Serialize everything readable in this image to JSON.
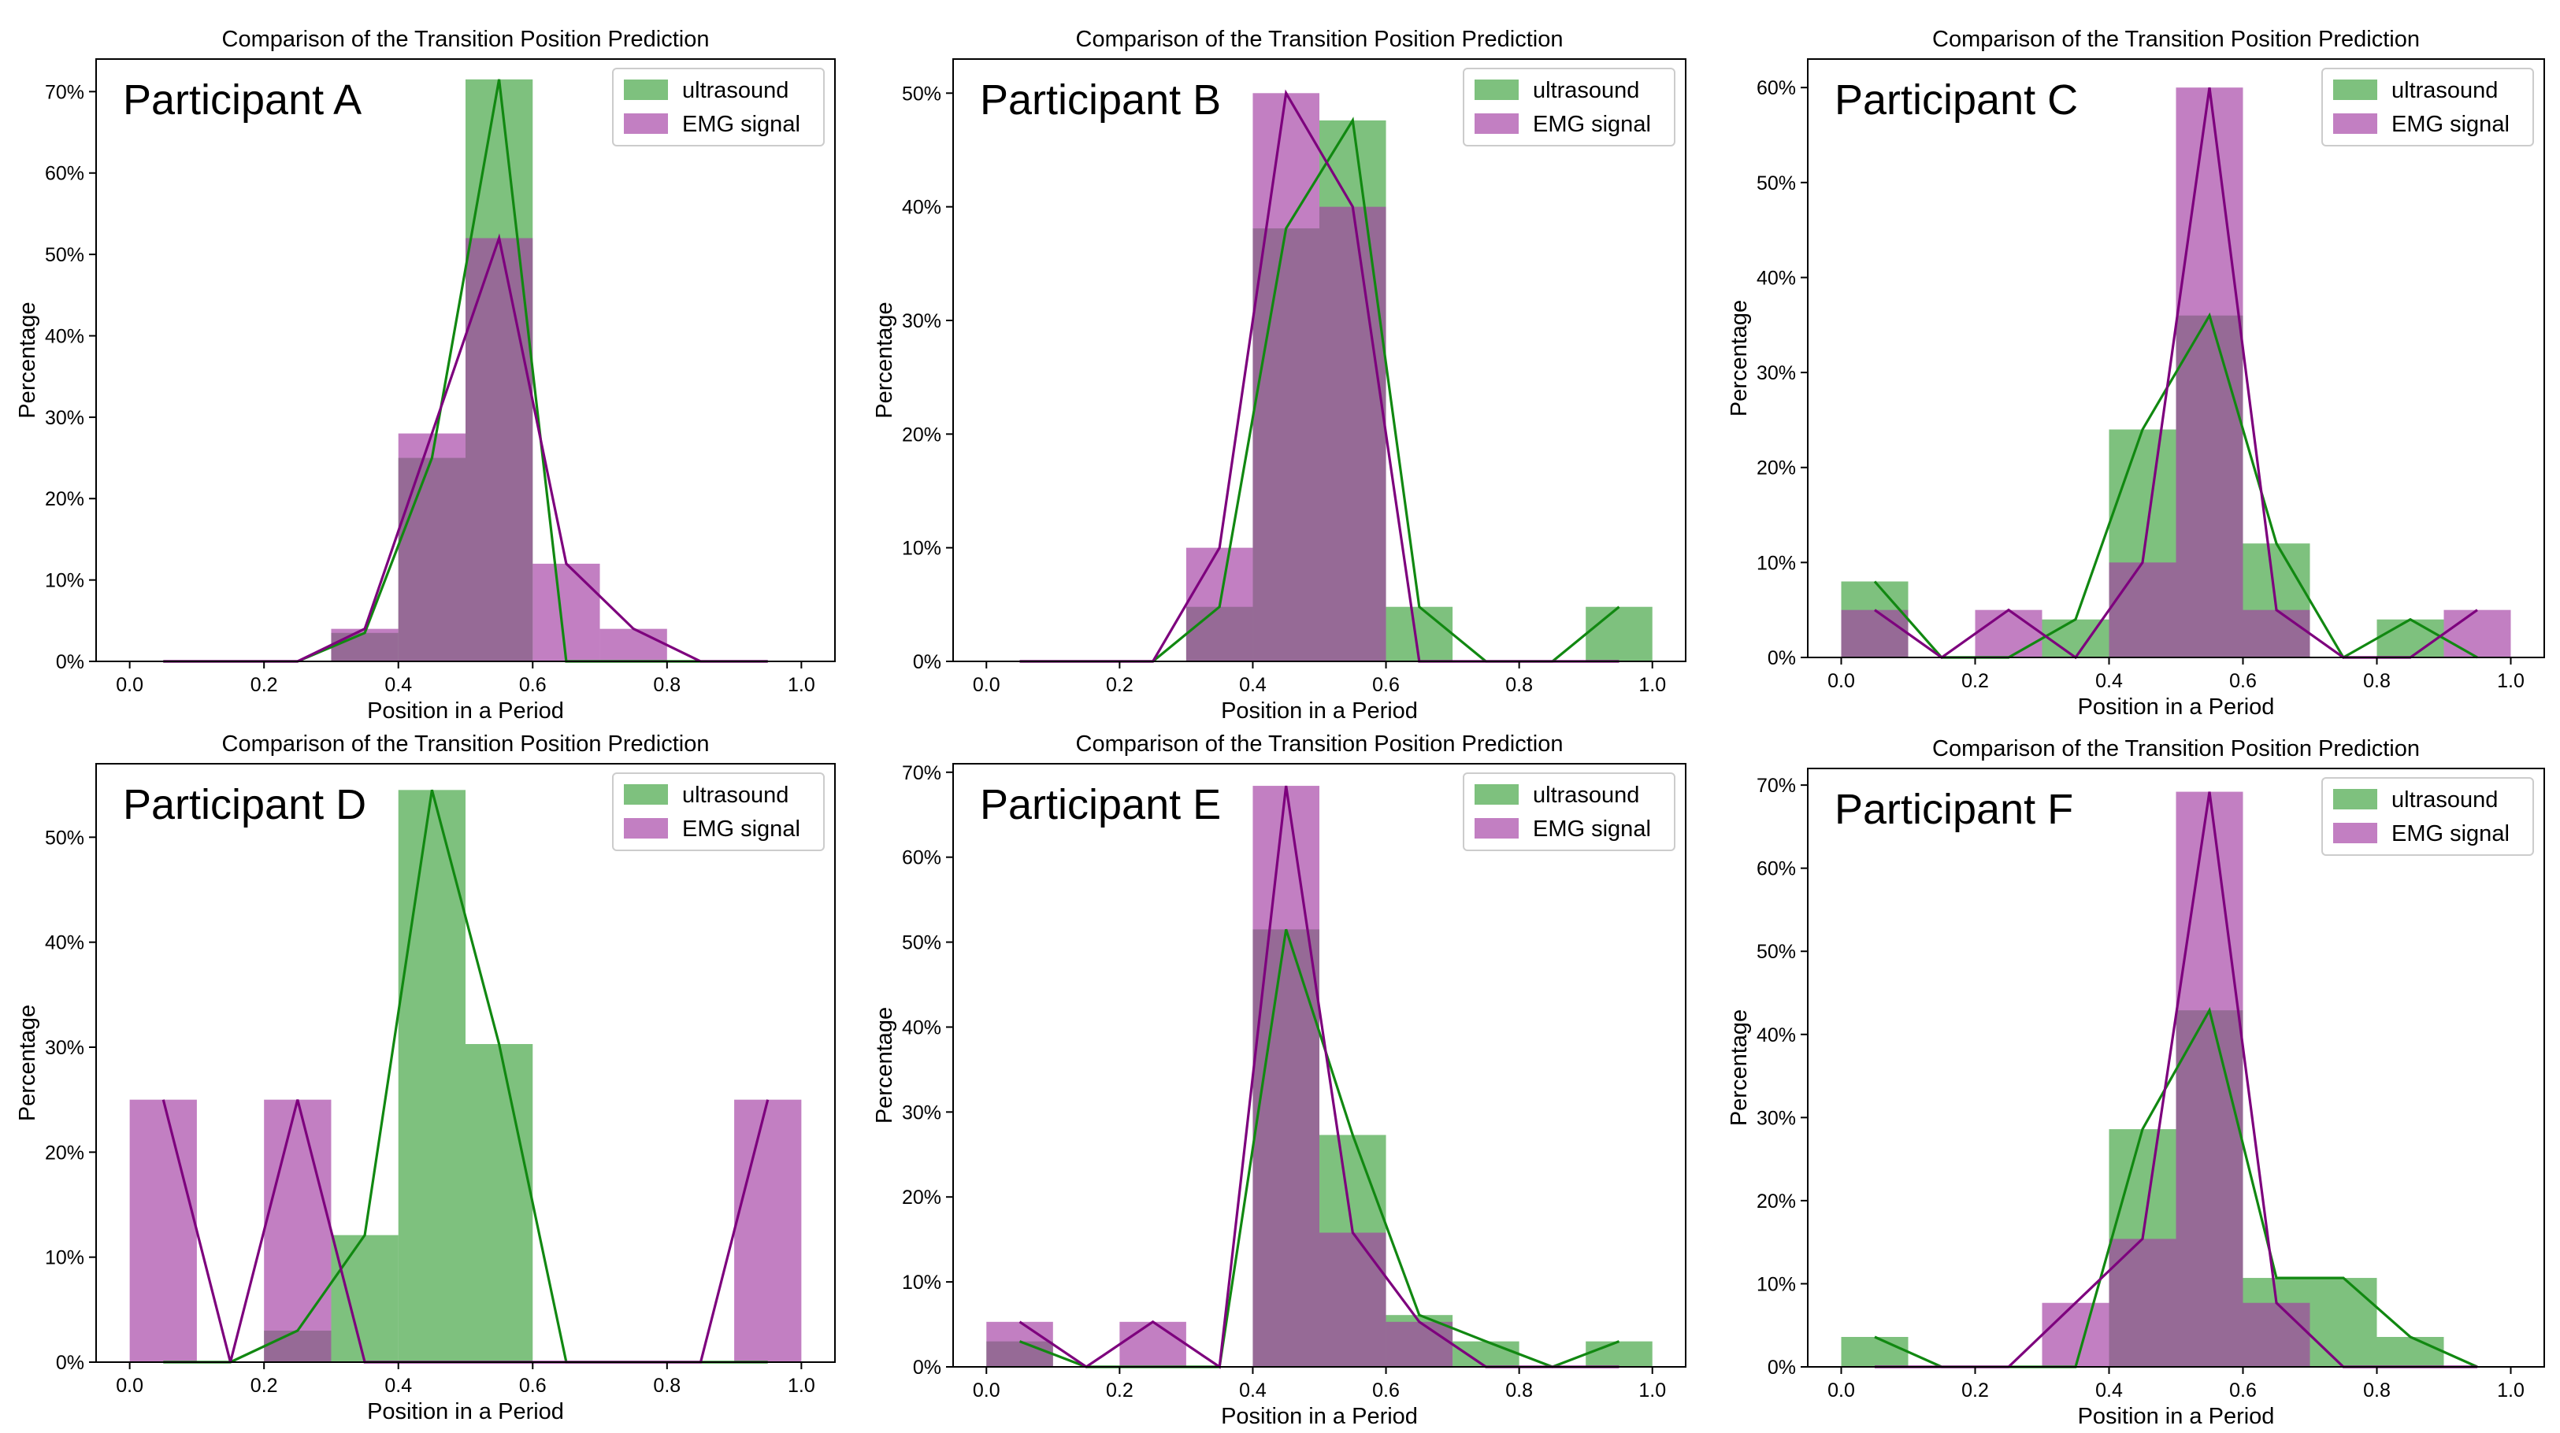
{
  "figure": {
    "style": {
      "ultrasound_color": "#2e9b2e",
      "emg_color": "#a33ca3",
      "ultrasound_line": "#118811",
      "emg_line": "#7d007d"
    }
  },
  "chart_data": [
    {
      "type": "bar",
      "panel": "Participant A",
      "title": "Comparison of the Transition Position Prediction",
      "xlabel": "Position in a Period",
      "ylabel": "Percentage",
      "xlim": [
        -0.05,
        1.05
      ],
      "ylim": [
        0,
        74
      ],
      "xticks": [
        0.0,
        0.2,
        0.4,
        0.6,
        0.8,
        1.0
      ],
      "yticks": [
        0,
        10,
        20,
        30,
        40,
        50,
        60,
        70
      ],
      "legend": "top-right",
      "bin_edges": [
        0.0,
        0.1,
        0.2,
        0.3,
        0.4,
        0.5,
        0.6,
        0.7,
        0.8,
        0.9,
        1.0
      ],
      "series": [
        {
          "name": "ultrasound",
          "values": [
            0,
            0,
            0,
            3.5,
            25,
            71.5,
            0,
            0,
            0,
            0
          ]
        },
        {
          "name": "EMG signal",
          "values": [
            0,
            0,
            0,
            4,
            28,
            52,
            12,
            4,
            0,
            0
          ]
        }
      ]
    },
    {
      "type": "bar",
      "panel": "Participant B",
      "title": "Comparison of the Transition Position Prediction",
      "xlabel": "Position in a Period",
      "ylabel": "Percentage",
      "xlim": [
        -0.05,
        1.05
      ],
      "ylim": [
        0,
        53
      ],
      "xticks": [
        0.0,
        0.2,
        0.4,
        0.6,
        0.8,
        1.0
      ],
      "yticks": [
        0,
        10,
        20,
        30,
        40,
        50
      ],
      "legend": "top-right",
      "bin_edges": [
        0.0,
        0.1,
        0.2,
        0.3,
        0.4,
        0.5,
        0.6,
        0.7,
        0.8,
        0.9,
        1.0
      ],
      "series": [
        {
          "name": "ultrasound",
          "values": [
            0,
            0,
            0,
            4.8,
            38.1,
            47.6,
            4.8,
            0,
            0,
            4.8
          ]
        },
        {
          "name": "EMG signal",
          "values": [
            0,
            0,
            0,
            10,
            50,
            40,
            0,
            0,
            0,
            0
          ]
        }
      ]
    },
    {
      "type": "bar",
      "panel": "Participant C",
      "title": "Comparison of the Transition Position Prediction",
      "xlabel": "Position in a Period",
      "ylabel": "Percentage",
      "xlim": [
        -0.05,
        1.05
      ],
      "ylim": [
        0,
        63
      ],
      "xticks": [
        0.0,
        0.2,
        0.4,
        0.6,
        0.8,
        1.0
      ],
      "yticks": [
        0,
        10,
        20,
        30,
        40,
        50,
        60
      ],
      "legend": "top-right",
      "bin_edges": [
        0.0,
        0.1,
        0.2,
        0.3,
        0.4,
        0.5,
        0.6,
        0.7,
        0.8,
        0.9,
        1.0
      ],
      "series": [
        {
          "name": "ultrasound",
          "values": [
            8,
            0,
            0,
            4,
            24,
            36,
            12,
            0,
            4,
            0
          ]
        },
        {
          "name": "EMG signal",
          "values": [
            5,
            0,
            5,
            0,
            10,
            60,
            5,
            0,
            0,
            5
          ]
        }
      ]
    },
    {
      "type": "bar",
      "panel": "Participant D",
      "title": "Comparison of the Transition Position Prediction",
      "xlabel": "Position in a Period",
      "ylabel": "Percentage",
      "xlim": [
        -0.05,
        1.05
      ],
      "ylim": [
        0,
        57
      ],
      "xticks": [
        0.0,
        0.2,
        0.4,
        0.6,
        0.8,
        1.0
      ],
      "yticks": [
        0,
        10,
        20,
        30,
        40,
        50
      ],
      "legend": "top-right",
      "bin_edges": [
        0.0,
        0.1,
        0.2,
        0.3,
        0.4,
        0.5,
        0.6,
        0.7,
        0.8,
        0.9,
        1.0
      ],
      "series": [
        {
          "name": "ultrasound",
          "values": [
            0,
            0,
            3,
            12.1,
            54.5,
            30.3,
            0,
            0,
            0,
            0
          ]
        },
        {
          "name": "EMG signal",
          "values": [
            25,
            0,
            25,
            0,
            0,
            0,
            0,
            0,
            0,
            25
          ]
        }
      ]
    },
    {
      "type": "bar",
      "panel": "Participant E",
      "title": "Comparison of the Transition Position Prediction",
      "xlabel": "Position in a Period",
      "ylabel": "Percentage",
      "xlim": [
        -0.05,
        1.05
      ],
      "ylim": [
        0,
        71
      ],
      "xticks": [
        0.0,
        0.2,
        0.4,
        0.6,
        0.8,
        1.0
      ],
      "yticks": [
        0,
        10,
        20,
        30,
        40,
        50,
        60,
        70
      ],
      "legend": "top-right",
      "bin_edges": [
        0.0,
        0.1,
        0.2,
        0.3,
        0.4,
        0.5,
        0.6,
        0.7,
        0.8,
        0.9,
        1.0
      ],
      "series": [
        {
          "name": "ultrasound",
          "values": [
            3,
            0,
            0,
            0,
            51.5,
            27.3,
            6.1,
            3,
            0,
            3
          ]
        },
        {
          "name": "EMG signal",
          "values": [
            5.3,
            0,
            5.3,
            0,
            68.4,
            15.8,
            5.3,
            0,
            0,
            0
          ]
        }
      ]
    },
    {
      "type": "bar",
      "panel": "Participant F",
      "title": "Comparison of the Transition Position Prediction",
      "xlabel": "Position in a Period",
      "ylabel": "Percentage",
      "xlim": [
        -0.05,
        1.05
      ],
      "ylim": [
        0,
        72
      ],
      "xticks": [
        0.0,
        0.2,
        0.4,
        0.6,
        0.8,
        1.0
      ],
      "yticks": [
        0,
        10,
        20,
        30,
        40,
        50,
        60,
        70
      ],
      "legend": "top-right",
      "bin_edges": [
        0.0,
        0.1,
        0.2,
        0.3,
        0.4,
        0.5,
        0.6,
        0.7,
        0.8,
        0.9,
        1.0
      ],
      "series": [
        {
          "name": "ultrasound",
          "values": [
            3.6,
            0,
            0,
            0,
            28.6,
            42.9,
            10.7,
            10.7,
            3.6,
            0
          ]
        },
        {
          "name": "EMG signal",
          "values": [
            0,
            0,
            0,
            7.7,
            15.4,
            69.2,
            7.7,
            0,
            0,
            0
          ]
        }
      ]
    }
  ]
}
